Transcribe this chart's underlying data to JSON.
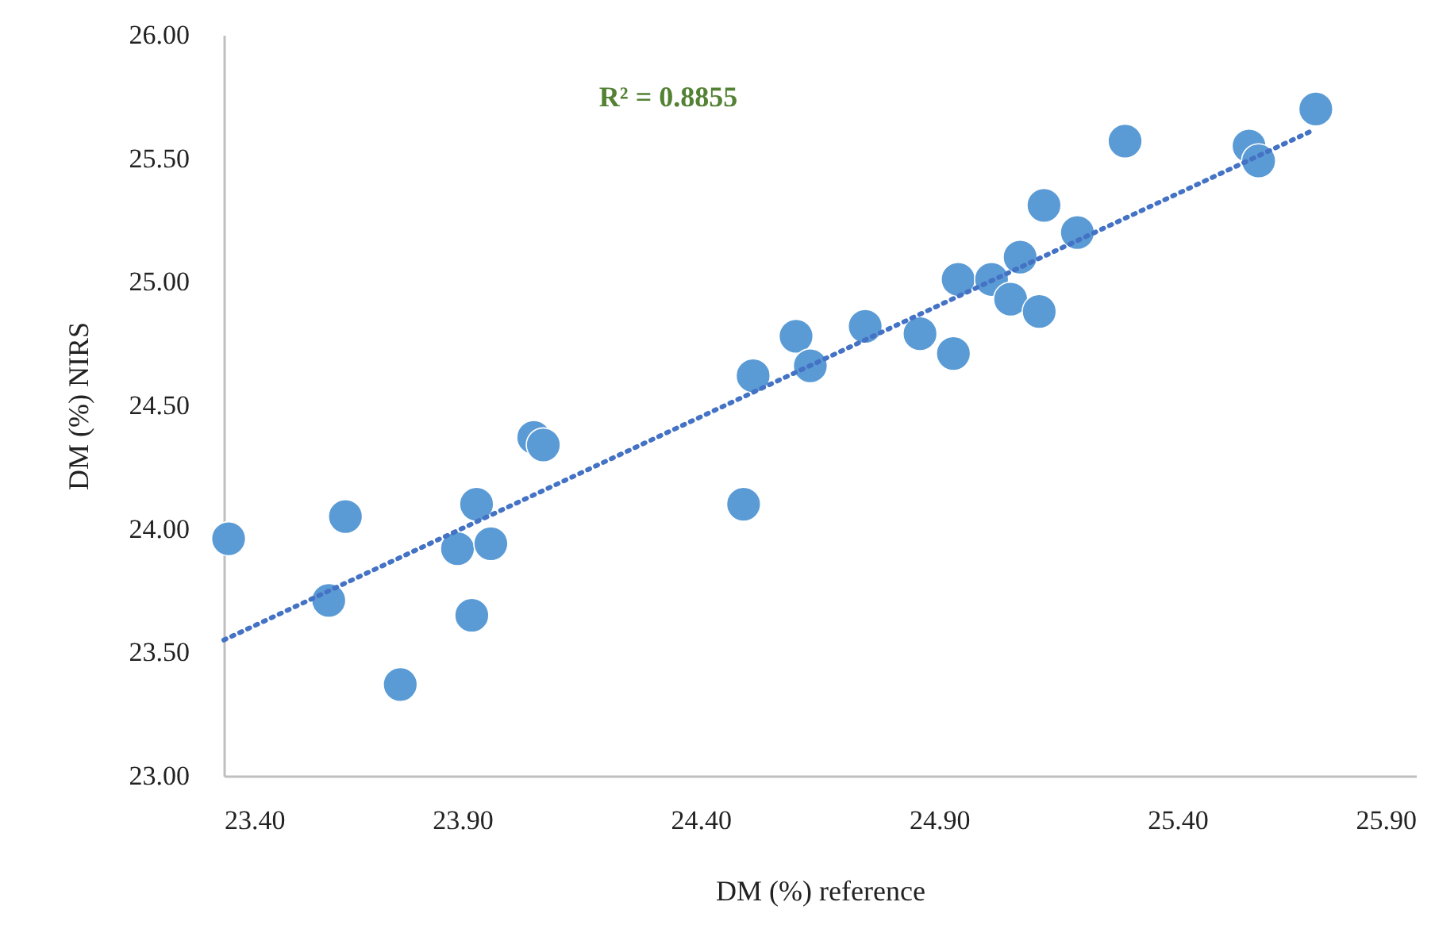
{
  "chart_data": {
    "type": "scatter",
    "xlabel": "DM (%) reference",
    "ylabel": "DM (%) NIRS",
    "annotations": [
      "R² = 0.8855"
    ],
    "xlim": [
      23.4,
      25.9
    ],
    "xticks": [
      {
        "value": 23.4,
        "label": "23.40"
      },
      {
        "value": 23.9,
        "label": "23.90"
      },
      {
        "value": 24.4,
        "label": "24.40"
      },
      {
        "value": 24.9,
        "label": "24.90"
      },
      {
        "value": 25.4,
        "label": "25.40"
      },
      {
        "value": 25.9,
        "label": "25.90"
      }
    ],
    "ylim": [
      23,
      26
    ],
    "yticks": [
      {
        "value": 23,
        "label": "23.00"
      },
      {
        "value": 23.5,
        "label": "23.50"
      },
      {
        "value": 24,
        "label": "24.00"
      },
      {
        "value": 24.5,
        "label": "24.50"
      },
      {
        "value": 25,
        "label": "25.00"
      },
      {
        "value": 25.5,
        "label": "25.50"
      },
      {
        "value": 26,
        "label": "26.00"
      }
    ],
    "grid": false,
    "series": [
      {
        "color": "#5b9bd5",
        "marker": "circle",
        "x": [
          23.41,
          23.62,
          23.655,
          23.77,
          23.89,
          23.93,
          23.96,
          23.92,
          24.05,
          24.07,
          24.49,
          24.51,
          24.6,
          24.63,
          24.745,
          24.86,
          24.93,
          24.94,
          25.01,
          25.05,
          25.07,
          25.11,
          25.12,
          25.19,
          25.29,
          25.55,
          25.57,
          25.69
        ],
        "values": [
          23.96,
          23.71,
          24.05,
          23.37,
          23.92,
          24.1,
          23.94,
          23.65,
          24.37,
          24.34,
          24.1,
          24.62,
          24.78,
          24.66,
          24.82,
          24.79,
          24.71,
          25.01,
          25.01,
          24.93,
          25.1,
          24.88,
          25.31,
          25.2,
          25.57,
          25.55,
          25.49,
          25.7
        ]
      },
      {
        "type": "line",
        "color": "#4472c4",
        "line_style": "dotted",
        "marker": "none",
        "x": [
          23.4,
          25.68
        ],
        "values": [
          23.55,
          25.61
        ]
      }
    ]
  }
}
